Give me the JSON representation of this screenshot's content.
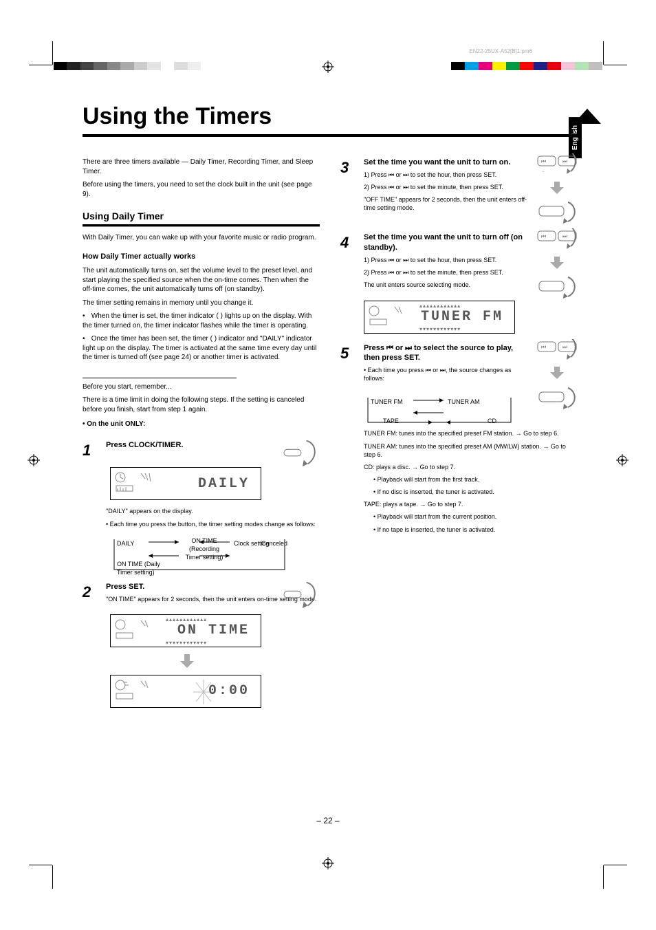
{
  "page": {
    "title": "Using the Timers",
    "language_tab": "English",
    "page_number": "– 22 –",
    "file_tag": "EN22-25UX-A52[B]1.pm6"
  },
  "intro": [
    "There are three timers available — Daily Timer, Recording Timer, and Sleep Timer.",
    "Before using the timers, you need to set the clock built in the unit (see page 9)."
  ],
  "daily": {
    "heading": "Using Daily Timer",
    "lead": "With Daily Timer, you can wake up with your favorite music or radio program.",
    "how_heading": "How Daily Timer actually works",
    "how1": "The unit automatically turns on, set the volume level to the preset level, and start playing the specified source when the on-time comes. Then when the off-time comes, the unit automatically turns off (on standby).",
    "how2": "The timer setting remains in memory until you change it.",
    "bullets": [
      "When the timer is set, the timer indicator ( ) lights up on the display. With the timer turned on, the timer indicator flashes while the timer is operating.",
      "Once the timer has been set, the timer ( ) indicator and \"DAILY\" indicator light up on the display. The timer is activated at the same time every day until the timer is turned off (see page 24) or another timer is activated."
    ],
    "before": {
      "rule": true,
      "text": "Before you start, remember...",
      "text2": "There is a time limit in doing the following steps. If the setting is canceled before you finish, start from step 1 again.",
      "unit_note": "• On the unit ONLY:"
    }
  },
  "steps": {
    "s1": {
      "num": "1",
      "lead": "Press CLOCK/TIMER.",
      "lcd_text": "DAILY",
      "after": "\"DAILY\" appears on the display.",
      "note_label": "• Each time you press the button, the timer setting modes change as follows:",
      "cycle_items": [
        "DAILY",
        "ON TIME (Recording Timer setting)",
        "ON TIME (Daily Timer setting)",
        "Clock setting"
      ],
      "cancel": "Canceled"
    },
    "s2": {
      "num": "2",
      "lead": "Press SET.",
      "lcd1": "ON TIME",
      "lcd2": "0:00",
      "after": "\"ON TIME\" appears for 2 seconds, then the unit enters on-time setting mode."
    },
    "s3": {
      "num": "3",
      "lead": "Set the time you want the unit to turn on.",
      "sub1": "1) Press ⏮ or ⏭ to set the hour, then press SET.",
      "sub2": "2) Press ⏮ or ⏭ to set the minute, then press SET.",
      "after": "\"OFF TIME\" appears for 2 seconds, then the unit enters off-time setting mode."
    },
    "s4": {
      "num": "4",
      "lead": "Set the time you want the unit to turn off (on standby).",
      "sub1": "1) Press ⏮ or ⏭ to set the hour, then press SET.",
      "sub2": "2) Press ⏮ or ⏭ to set the minute, then press SET.",
      "after": "The unit enters source selecting mode.",
      "lcd": "TUNER  FM"
    },
    "s5": {
      "num": "5",
      "lead": "Press ⏮ or ⏭ to select the source to play, then press SET.",
      "note_label": "• Each time you press ⏮ or ⏭, the source changes as follows:",
      "cycle_items": [
        "TUNER FM",
        "TUNER AM",
        "TAPE",
        "CD"
      ],
      "opt_tuner_fm": "TUNER FM: tunes into the specified preset FM station. → Go to step 6.",
      "opt_tuner_am": "TUNER AM: tunes into the specified preset AM (MW/LW) station. → Go to step 6.",
      "opt_cd": "CD: plays a disc. → Go to step 7.",
      "cd_note1": "Playback will start from the first track.",
      "cd_note2": "If no disc is inserted, the tuner is activated.",
      "opt_tape": "TAPE: plays a tape. → Go to step 7.",
      "tape_note1": "Playback will start from the current position.",
      "tape_note2": "If no tape is inserted, the tuner is activated."
    }
  },
  "colorbar_left": [
    "#000",
    "#222",
    "#444",
    "#666",
    "#888",
    "#aaa",
    "#ccc",
    "#e4e4e4",
    "#fff",
    "#ddd",
    "#eee"
  ],
  "colorbar_right": [
    "#000",
    "#00a0e9",
    "#e4007f",
    "#fff100",
    "#009944",
    "#ff0000",
    "#1d2088",
    "#e60012",
    "#f6c3db",
    "#b3e4b5",
    "#bfbfbf"
  ]
}
